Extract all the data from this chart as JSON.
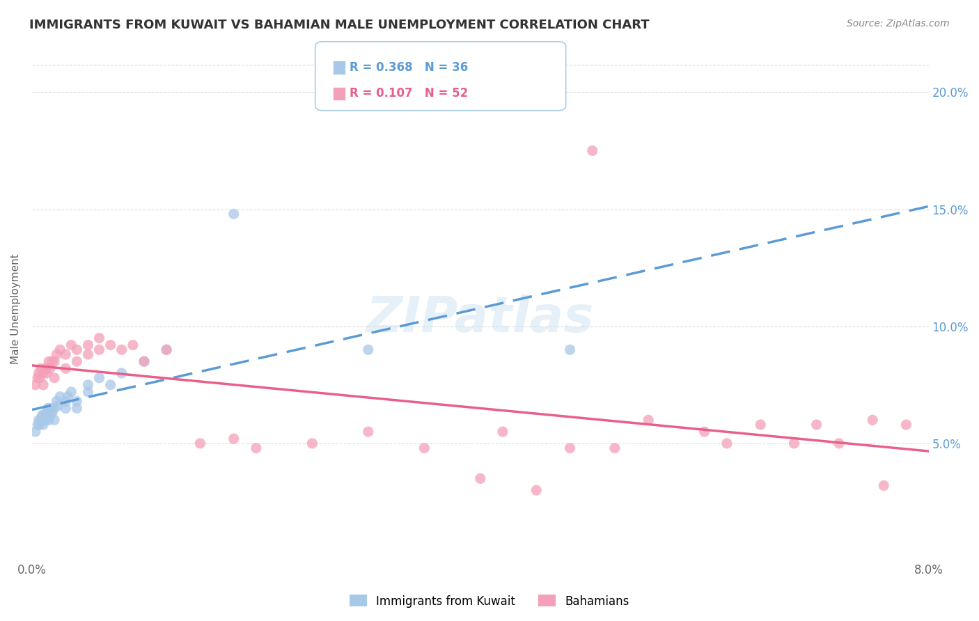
{
  "title": "IMMIGRANTS FROM KUWAIT VS BAHAMIAN MALE UNEMPLOYMENT CORRELATION CHART",
  "source": "Source: ZipAtlas.com",
  "ylabel": "Male Unemployment",
  "x_min": 0.0,
  "x_max": 0.08,
  "y_min": 0.0,
  "y_max": 0.215,
  "y_ticks": [
    0.05,
    0.1,
    0.15,
    0.2
  ],
  "y_tick_labels": [
    "5.0%",
    "10.0%",
    "15.0%",
    "20.0%"
  ],
  "legend_entries": [
    {
      "label": "R = 0.368   N = 36",
      "color": "#5b9bd5"
    },
    {
      "label": "R = 0.107   N = 52",
      "color": "#e8608a"
    }
  ],
  "blue_scatter_x": [
    0.0003,
    0.0005,
    0.0006,
    0.0007,
    0.0008,
    0.0009,
    0.001,
    0.001,
    0.0012,
    0.0013,
    0.0014,
    0.0015,
    0.0016,
    0.0017,
    0.0018,
    0.002,
    0.002,
    0.0022,
    0.0023,
    0.0025,
    0.003,
    0.003,
    0.0032,
    0.0035,
    0.004,
    0.004,
    0.005,
    0.005,
    0.006,
    0.007,
    0.008,
    0.01,
    0.012,
    0.018,
    0.03,
    0.048
  ],
  "blue_scatter_y": [
    0.055,
    0.058,
    0.06,
    0.058,
    0.06,
    0.062,
    0.058,
    0.062,
    0.06,
    0.063,
    0.065,
    0.06,
    0.062,
    0.065,
    0.063,
    0.06,
    0.065,
    0.068,
    0.066,
    0.07,
    0.065,
    0.068,
    0.07,
    0.072,
    0.065,
    0.068,
    0.072,
    0.075,
    0.078,
    0.075,
    0.08,
    0.085,
    0.09,
    0.148,
    0.09,
    0.09
  ],
  "pink_scatter_x": [
    0.0003,
    0.0005,
    0.0006,
    0.0007,
    0.0008,
    0.001,
    0.001,
    0.0012,
    0.0013,
    0.0015,
    0.0016,
    0.0018,
    0.002,
    0.002,
    0.0022,
    0.0025,
    0.003,
    0.003,
    0.0035,
    0.004,
    0.004,
    0.005,
    0.005,
    0.006,
    0.006,
    0.007,
    0.008,
    0.009,
    0.01,
    0.012,
    0.015,
    0.018,
    0.02,
    0.025,
    0.03,
    0.035,
    0.04,
    0.042,
    0.045,
    0.048,
    0.05,
    0.052,
    0.055,
    0.06,
    0.062,
    0.065,
    0.068,
    0.07,
    0.072,
    0.075,
    0.076,
    0.078
  ],
  "pink_scatter_y": [
    0.075,
    0.078,
    0.08,
    0.078,
    0.082,
    0.075,
    0.08,
    0.082,
    0.08,
    0.085,
    0.082,
    0.085,
    0.078,
    0.085,
    0.088,
    0.09,
    0.082,
    0.088,
    0.092,
    0.085,
    0.09,
    0.088,
    0.092,
    0.09,
    0.095,
    0.092,
    0.09,
    0.092,
    0.085,
    0.09,
    0.05,
    0.052,
    0.048,
    0.05,
    0.055,
    0.048,
    0.035,
    0.055,
    0.03,
    0.048,
    0.175,
    0.048,
    0.06,
    0.055,
    0.05,
    0.058,
    0.05,
    0.058,
    0.05,
    0.06,
    0.032,
    0.058
  ],
  "blue_color": "#a8c8e8",
  "pink_color": "#f4a0b8",
  "blue_line_color": "#5b9bd5",
  "pink_line_color": "#e8608a",
  "background_color": "#ffffff",
  "watermark_text": "ZIPatlas",
  "title_color": "#333333",
  "title_fontsize": 13,
  "axis_label_color": "#666666",
  "grid_color": "#dddddd",
  "legend_border_color": "#aacce8"
}
